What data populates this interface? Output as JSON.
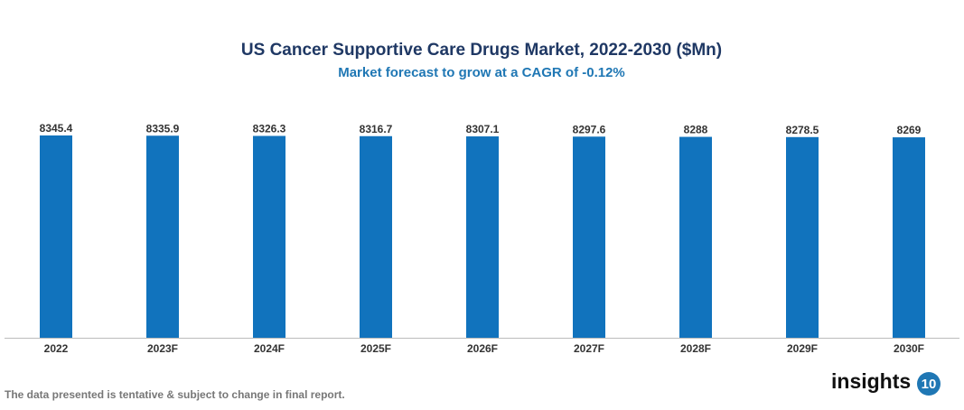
{
  "chart_data": {
    "type": "bar",
    "title": "US Cancer Supportive Care Drugs Market, 2022-2030 ($Mn)",
    "subtitle": "Market forecast to grow at a CAGR of -0.12%",
    "categories": [
      "2022",
      "2023F",
      "2024F",
      "2025F",
      "2026F",
      "2027F",
      "2028F",
      "2029F",
      "2030F"
    ],
    "values": [
      8345.4,
      8335.9,
      8326.3,
      8316.7,
      8307.1,
      8297.6,
      8288,
      8278.5,
      8269
    ],
    "color": "#1173bd"
  },
  "footer": {
    "note": "The data presented is tentative & subject to change in final report."
  },
  "logo": {
    "text": "insights",
    "number": "10"
  }
}
